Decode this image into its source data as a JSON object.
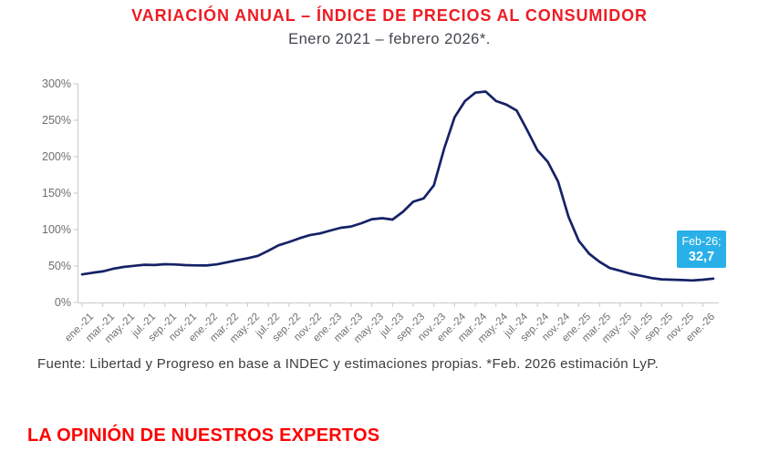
{
  "header": {
    "title": "VARIACIÓN ANUAL – ÍNDICE DE PRECIOS AL CONSUMIDOR",
    "subtitle": "Enero 2021 – febrero 2026*."
  },
  "chart_data": {
    "type": "line",
    "title": "VARIACIÓN ANUAL – ÍNDICE DE PRECIOS AL CONSUMIDOR",
    "subtitle": "Enero 2021 – febrero 2026*.",
    "grid": false,
    "legend": "none",
    "ylim": [
      0,
      300
    ],
    "xlabel": "",
    "ylabel": "",
    "x": [
      "ene.-21",
      "feb.-21",
      "mar.-21",
      "abr.-21",
      "may.-21",
      "jun.-21",
      "jul.-21",
      "ago.-21",
      "sep.-21",
      "oct.-21",
      "nov.-21",
      "dic.-21",
      "ene.-22",
      "feb.-22",
      "mar.-22",
      "abr.-22",
      "may.-22",
      "jun.-22",
      "jul.-22",
      "ago.-22",
      "sep.-22",
      "oct.-22",
      "nov.-22",
      "dic.-22",
      "ene.-23",
      "feb.-23",
      "mar.-23",
      "abr.-23",
      "may.-23",
      "jun.-23",
      "jul.-23",
      "ago.-23",
      "sep.-23",
      "oct.-23",
      "nov.-23",
      "dic.-23",
      "ene.-24",
      "feb.-24",
      "mar.-24",
      "abr.-24",
      "may.-24",
      "jun.-24",
      "jul.-24",
      "ago.-24",
      "sep.-24",
      "oct.-24",
      "nov.-24",
      "dic.-24",
      "ene.-25",
      "feb.-25",
      "mar.-25",
      "abr.-25",
      "may.-25",
      "jun.-25",
      "jul.-25",
      "ago.-25",
      "sep.-25",
      "oct.-25",
      "nov.-25",
      "dic.-25",
      "ene.-26",
      "feb.-26"
    ],
    "series": [
      {
        "name": "Variación anual del IPC (%)",
        "color": "#152266",
        "values": [
          38.5,
          40.7,
          42.6,
          46.3,
          48.8,
          50.2,
          51.8,
          51.4,
          52.5,
          52.1,
          51.2,
          50.9,
          50.7,
          52.3,
          55.1,
          58.0,
          60.7,
          64.0,
          71.0,
          78.5,
          83.0,
          88.0,
          92.4,
          94.8,
          98.8,
          102.5,
          104.3,
          108.8,
          114.2,
          115.6,
          113.8,
          124.4,
          138.3,
          142.7,
          160.9,
          211.4,
          254.2,
          276.2,
          287.9,
          289.4,
          276.4,
          271.5,
          263.4,
          236.7,
          209.0,
          193.0,
          166.0,
          117.8,
          84.5,
          66.9,
          55.9,
          47.3,
          43.5,
          39.4,
          36.6,
          33.6,
          31.8,
          31.3,
          30.8,
          30.3,
          31.2,
          32.7
        ]
      }
    ],
    "y_axis": {
      "tick_values": [
        0,
        50,
        100,
        150,
        200,
        250,
        300
      ],
      "tick_labels": [
        "0%",
        "50%",
        "100%",
        "150%",
        "200%",
        "250%",
        "300%"
      ]
    },
    "x_axis": {
      "tick_step": 2,
      "tick_labels": [
        "ene.-21",
        "mar.-21",
        "may.-21",
        "jul.-21",
        "sep.-21",
        "nov.-21",
        "ene.-22",
        "mar.-22",
        "may.-22",
        "jul.-22",
        "sep.-22",
        "nov.-22",
        "ene.-23",
        "mar.-23",
        "may.-23",
        "jul.-23",
        "sep.-23",
        "nov.-23",
        "ene.-24",
        "mar.-24",
        "may.-24",
        "jul.-24",
        "sep.-24",
        "nov.-24",
        "ene.-25",
        "mar.-25",
        "may.-25",
        "jul.-25",
        "sep.-25",
        "nov.-25",
        "ene.-26"
      ]
    },
    "end_label": {
      "line1": "Feb-26;",
      "line2": "32,7",
      "bg_color": "#29b0e8",
      "text_color": "#ffffff"
    }
  },
  "footer": {
    "source": "Fuente: Libertad y Progreso en base a INDEC y estimaciones propias. *Feb. 2026 estimación LyP."
  },
  "section_heading": {
    "text": "LA OPINIÓN DE NUESTROS EXPERTOS"
  },
  "colors": {
    "title_red": "#ed1c24",
    "heading_red": "#fe0000",
    "subtitle_gray": "#41454d",
    "line_navy": "#152266",
    "label_box_cyan": "#29b0e8",
    "axis_gray": "#c9c9c9",
    "tick_text_gray": "#6e6e6e"
  }
}
